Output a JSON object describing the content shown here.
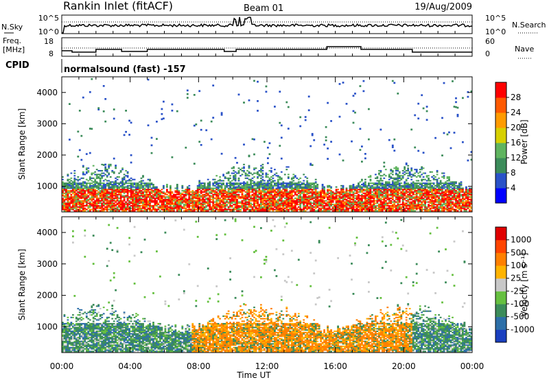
{
  "header": {
    "station": "Rankin Inlet (fitACF)",
    "beam": "Beam 01",
    "date": "19/Aug/2009"
  },
  "status_panels": {
    "nsky_label": "N.Sky",
    "nsearch_label": "N.Search",
    "noise_ticks_left": [
      "10^5",
      "10^0"
    ],
    "noise_ticks_right": [
      "10^5",
      "10^0"
    ],
    "freq_label_line1": "Freq.",
    "freq_label_line2": "[MHz]",
    "freq_ticks": [
      "18",
      "8"
    ],
    "nave_label": "Nave",
    "nave_ticks": [
      "60",
      "0"
    ],
    "cpid_label": "CPID",
    "cpid_text": "normalsound (fast) -157"
  },
  "chart_data": [
    {
      "type": "heatmap",
      "name": "power",
      "ylabel": "Slant Range [km]",
      "xlabel": "",
      "x_ticks": [
        "00:00",
        "04:00",
        "08:00",
        "12:00",
        "16:00",
        "20:00",
        "00:00"
      ],
      "x_range_hours": [
        0,
        24
      ],
      "y_ticks": [
        1000,
        2000,
        3000,
        4000
      ],
      "y_range": [
        180,
        4500
      ],
      "colorbar": {
        "label": "Power [dB]",
        "tick_labels": [
          "4",
          "8",
          "12",
          "16",
          "20",
          "24",
          "28"
        ],
        "colors": [
          "#0000ff",
          "#2a52c8",
          "#3c8c5a",
          "#5fb45f",
          "#d7d000",
          "#ff9b00",
          "#ff5a00",
          "#ff0000"
        ],
        "range": [
          0,
          32
        ]
      }
    },
    {
      "type": "heatmap",
      "name": "velocity",
      "ylabel": "Slant Range [km]",
      "xlabel": "Time UT",
      "x_ticks": [
        "00:00",
        "04:00",
        "08:00",
        "12:00",
        "16:00",
        "20:00",
        "00:00"
      ],
      "x_range_hours": [
        0,
        24
      ],
      "y_ticks": [
        1000,
        2000,
        3000,
        4000
      ],
      "y_range": [
        180,
        4500
      ],
      "colorbar": {
        "label": "Velocity [m s⁻¹]",
        "tick_labels": [
          "1000",
          "500",
          "100",
          "25",
          "-25",
          "-100",
          "-500",
          "-1000"
        ],
        "colors": [
          "#1a3fbf",
          "#2d6fa8",
          "#3c8c5a",
          "#66c040",
          "#c8c8c8",
          "#ffb400",
          "#ff8000",
          "#ff4500",
          "#e00000"
        ]
      }
    }
  ]
}
